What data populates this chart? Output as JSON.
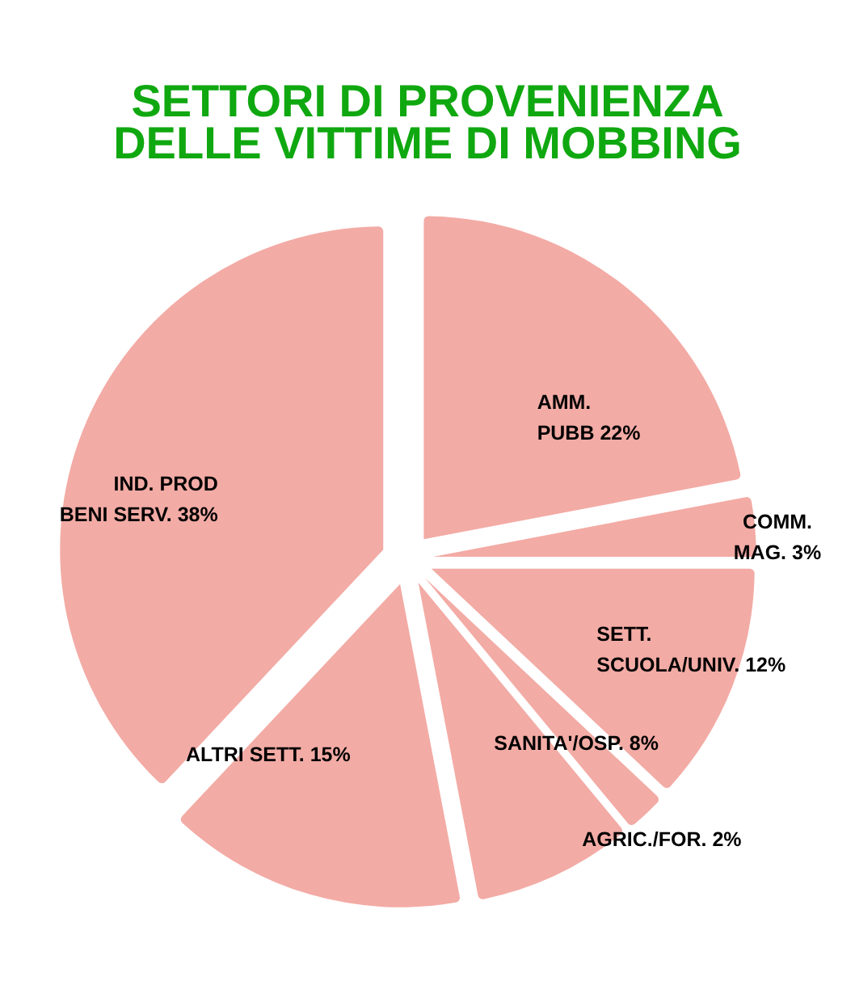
{
  "chart_data": {
    "type": "pie",
    "title": "SETTORI DI PROVENIENZA\nDELLE VITTIME DI MOBBING",
    "categories": [
      "AMM.\nPUBB",
      "COMM.\nMAG.",
      "SETT.\nSCUOLA/UNIV.",
      "AGRIC./FOR.",
      "SANITA'/OSP.",
      "ALTRI SETT.",
      "IND. PROD\nBENI SERV."
    ],
    "values": [
      22,
      3,
      12,
      2,
      8,
      15,
      38
    ],
    "value_labels": [
      "22%",
      "3%",
      "12%",
      "2%",
      "8%",
      "15%",
      "38%"
    ],
    "colors": [
      "#f3aba5",
      "#f3aba5",
      "#f3aba5",
      "#f3aba5",
      "#f3aba5",
      "#f3aba5",
      "#f3aba5"
    ]
  }
}
